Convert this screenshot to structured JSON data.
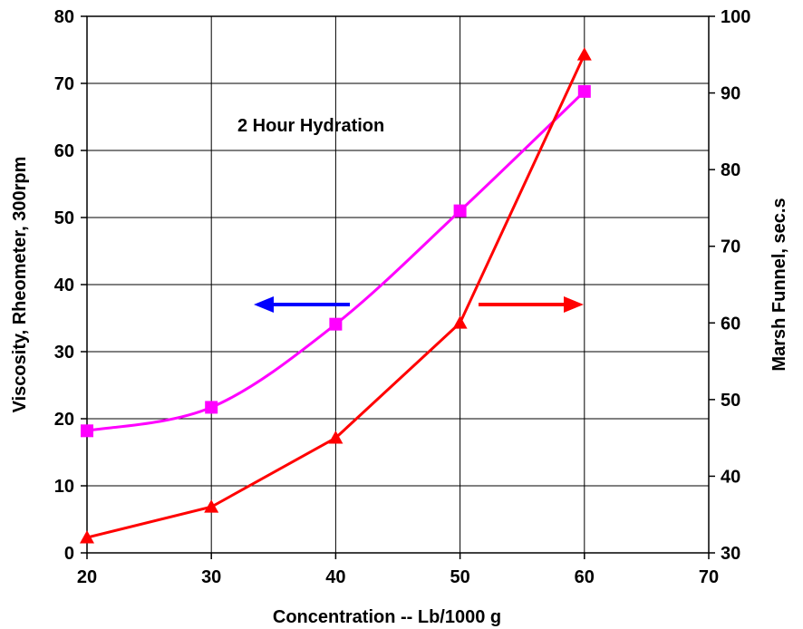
{
  "chart_data": {
    "type": "line",
    "title": "",
    "xlabel": "Concentration -- Lb/1000 g",
    "ylabel": "Viscosity, Rheometer, 300rpm",
    "y2label": "Marsh Funnel, sec.s",
    "xlim": [
      20,
      70
    ],
    "ylim": [
      0,
      80
    ],
    "y2lim": [
      30,
      100
    ],
    "xticks": [
      "20",
      "30",
      "40",
      "50",
      "60",
      "70"
    ],
    "yticks": [
      "0",
      "10",
      "20",
      "30",
      "40",
      "50",
      "60",
      "70",
      "80"
    ],
    "y2ticks": [
      "30",
      "40",
      "50",
      "60",
      "70",
      "80",
      "90",
      "100"
    ],
    "grid": true,
    "annotation": "2 Hour Hydration",
    "series": [
      {
        "axis": "left",
        "color": "#ff00ff",
        "marker": "square",
        "smooth": true,
        "x": [
          20,
          30,
          40,
          50,
          60
        ],
        "y": [
          18.2,
          21.7,
          34.1,
          51.0,
          68.8
        ]
      },
      {
        "axis": "right",
        "color": "#ff0000",
        "marker": "triangle",
        "smooth": false,
        "x": [
          20,
          30,
          40,
          50,
          60
        ],
        "y": [
          32,
          36,
          45,
          60,
          95
        ]
      }
    ],
    "arrows": [
      {
        "direction": "left",
        "color": "#0000ff",
        "points_to_axis": "left"
      },
      {
        "direction": "right",
        "color": "#ff0000",
        "points_to_axis": "right"
      }
    ]
  }
}
